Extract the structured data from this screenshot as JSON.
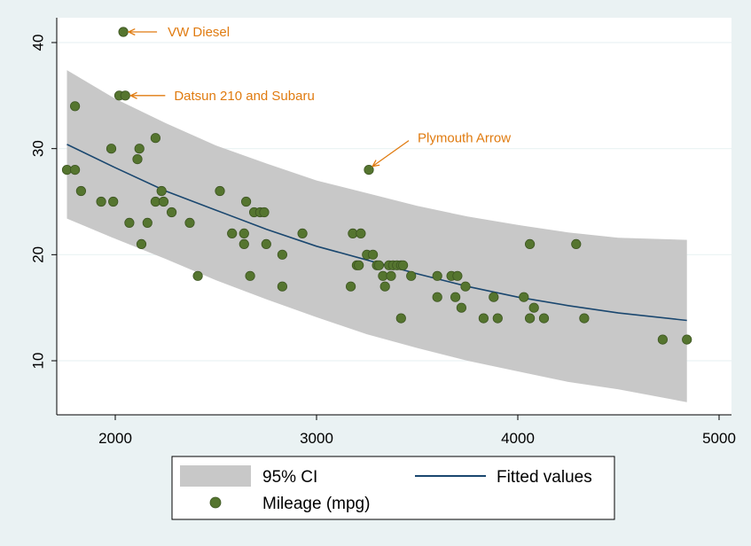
{
  "chart_data": {
    "type": "scatter",
    "title": "",
    "xlabel": "",
    "ylabel": "",
    "xlim": [
      1760,
      4840
    ],
    "ylim": [
      12,
      41
    ],
    "xticks": [
      2000,
      3000,
      4000,
      5000
    ],
    "yticks": [
      10,
      20,
      30,
      40
    ],
    "grid": "horizontal",
    "legend_position": "bottom",
    "colors": {
      "background": "#eaf2f3",
      "plot_bg": "#ffffff",
      "points": "#55752f",
      "fitted": "#1a476f",
      "ci_band": "#c8c8c8",
      "annotation": "#e07b10"
    },
    "series": [
      {
        "name": "Mileage (mpg)",
        "kind": "scatter",
        "points": [
          [
            1760,
            28
          ],
          [
            1800,
            34
          ],
          [
            1800,
            28
          ],
          [
            1830,
            26
          ],
          [
            1930,
            25
          ],
          [
            1980,
            30
          ],
          [
            1990,
            25
          ],
          [
            2020,
            35
          ],
          [
            2040,
            41
          ],
          [
            2050,
            35
          ],
          [
            2070,
            23
          ],
          [
            2110,
            29
          ],
          [
            2120,
            30
          ],
          [
            2130,
            21
          ],
          [
            2160,
            23
          ],
          [
            2200,
            31
          ],
          [
            2200,
            25
          ],
          [
            2230,
            26
          ],
          [
            2240,
            25
          ],
          [
            2280,
            24
          ],
          [
            2370,
            23
          ],
          [
            2410,
            18
          ],
          [
            2520,
            26
          ],
          [
            2580,
            22
          ],
          [
            2640,
            21
          ],
          [
            2640,
            22
          ],
          [
            2650,
            25
          ],
          [
            2670,
            18
          ],
          [
            2690,
            24
          ],
          [
            2720,
            24
          ],
          [
            2740,
            24
          ],
          [
            2750,
            21
          ],
          [
            2830,
            20
          ],
          [
            2830,
            17
          ],
          [
            2930,
            22
          ],
          [
            3170,
            17
          ],
          [
            3180,
            22
          ],
          [
            3200,
            19
          ],
          [
            3210,
            19
          ],
          [
            3220,
            22
          ],
          [
            3250,
            20
          ],
          [
            3260,
            28
          ],
          [
            3280,
            20
          ],
          [
            3300,
            19
          ],
          [
            3310,
            19
          ],
          [
            3330,
            18
          ],
          [
            3340,
            17
          ],
          [
            3360,
            19
          ],
          [
            3370,
            18
          ],
          [
            3380,
            19
          ],
          [
            3400,
            19
          ],
          [
            3420,
            14
          ],
          [
            3420,
            19
          ],
          [
            3430,
            19
          ],
          [
            3470,
            18
          ],
          [
            3600,
            18
          ],
          [
            3600,
            16
          ],
          [
            3670,
            18
          ],
          [
            3690,
            16
          ],
          [
            3700,
            18
          ],
          [
            3720,
            15
          ],
          [
            3740,
            17
          ],
          [
            3830,
            14
          ],
          [
            3880,
            16
          ],
          [
            3900,
            14
          ],
          [
            4030,
            16
          ],
          [
            4060,
            21
          ],
          [
            4060,
            14
          ],
          [
            4080,
            15
          ],
          [
            4130,
            14
          ],
          [
            4290,
            21
          ],
          [
            4330,
            14
          ],
          [
            4720,
            12
          ],
          [
            4840,
            12
          ]
        ]
      },
      {
        "name": "Fitted values",
        "kind": "line",
        "x": [
          1760,
          2000,
          2250,
          2500,
          2750,
          3000,
          3250,
          3500,
          3750,
          4000,
          4250,
          4500,
          4840
        ],
        "y": [
          30.4,
          28.2,
          26.0,
          24.2,
          22.4,
          20.8,
          19.5,
          18.2,
          17.0,
          16.0,
          15.2,
          14.5,
          13.8
        ]
      },
      {
        "name": "95% CI",
        "kind": "band",
        "x": [
          1760,
          2000,
          2250,
          2500,
          2750,
          3000,
          3250,
          3500,
          3750,
          4000,
          4250,
          4500,
          4840
        ],
        "lower": [
          23.4,
          21.5,
          19.6,
          17.6,
          15.8,
          14.1,
          12.5,
          11.2,
          10.0,
          9.0,
          8.0,
          7.3,
          6.1
        ],
        "upper": [
          37.4,
          34.7,
          32.4,
          30.3,
          28.6,
          27.0,
          25.8,
          24.6,
          23.6,
          22.8,
          22.1,
          21.6,
          21.4
        ]
      }
    ],
    "annotations": [
      {
        "text": "VW Diesel",
        "x": 2040,
        "y": 41
      },
      {
        "text": "Datsun 210 and Subaru",
        "x": 2050,
        "y": 35
      },
      {
        "text": "Plymouth Arrow",
        "x": 3260,
        "y": 28
      }
    ],
    "legend": {
      "ci_label": "95% CI",
      "fitted_label": "Fitted values",
      "points_label": "Mileage (mpg)"
    }
  }
}
